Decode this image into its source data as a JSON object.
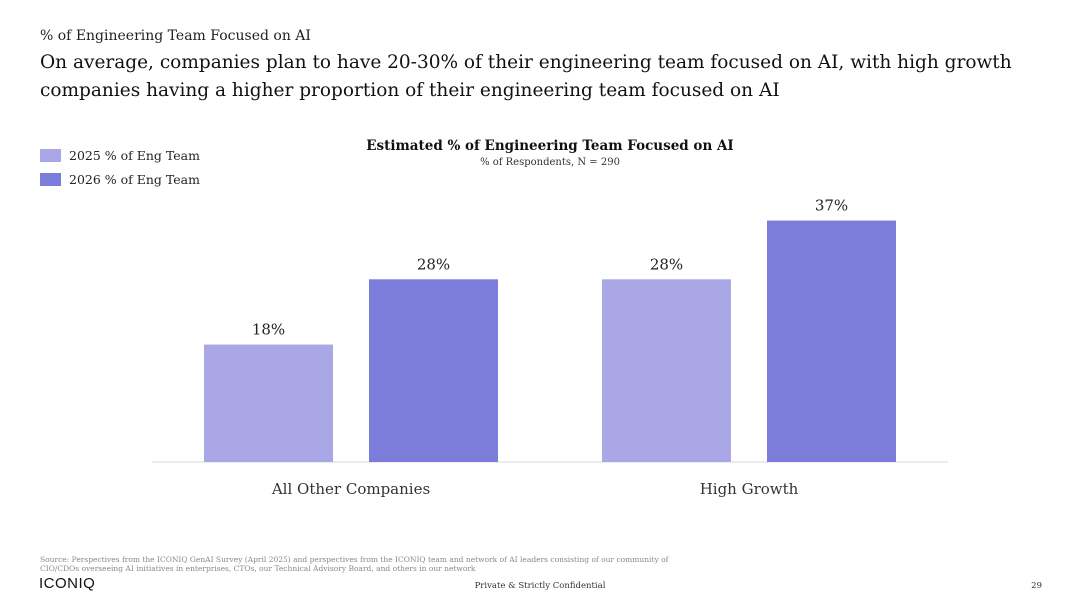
{
  "header": {
    "kicker": "% of Engineering Team Focused on AI",
    "headline": "On average, companies plan to have 20-30% of their engineering team focused on AI, with high growth companies having a higher proportion of their engineering team focused on AI"
  },
  "chart_data": {
    "type": "bar",
    "title": "Estimated % of Engineering Team Focused on AI",
    "subtitle": "% of Respondents, N = 290",
    "categories": [
      "All Other Companies",
      "High Growth"
    ],
    "series": [
      {
        "name": "2025 % of Eng Team",
        "color": "#a9a7e6",
        "values": [
          18,
          28
        ],
        "labels": [
          "18%",
          "28%"
        ]
      },
      {
        "name": "2026 % of Eng Team",
        "color": "#7c7ddb",
        "values": [
          28,
          37
        ],
        "labels": [
          "28%",
          "37%"
        ]
      }
    ],
    "ylim": [
      0,
      40
    ],
    "grid": false,
    "legend_position": "top-left",
    "axis_color": "#d9d9d9"
  },
  "footer": {
    "source": "Source: Perspectives from the ICONIQ GenAI Survey (April 2025) and perspectives from the ICONIQ team and network of AI leaders consisting of our community of CIO/CDOs overseeing AI initiatives in enterprises, CTOs, our Technical Advisory Board, and others in our network",
    "logo_text": "ICONIQ",
    "confidential": "Private & Strictly Confidential",
    "page_number": "29"
  }
}
